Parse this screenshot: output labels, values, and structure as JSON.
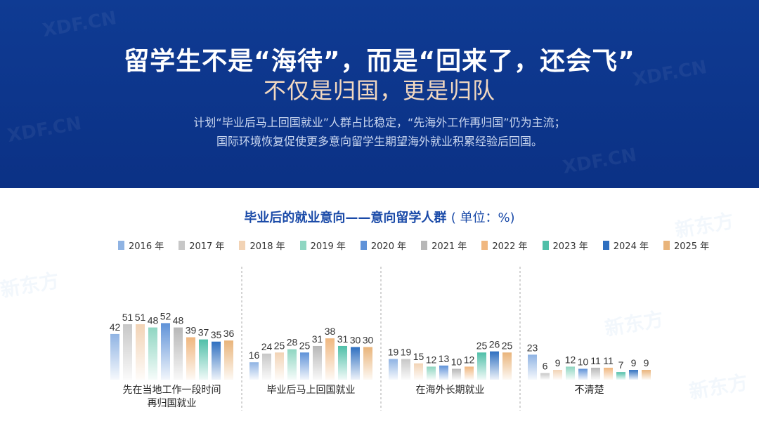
{
  "header": {
    "headline": "留学生不是“海待”，而是“回来了，还会飞”",
    "subhead": "不仅是归国，更是归队",
    "description_line1": "计划“毕业后马上回国就业”人群占比稳定，“先海外工作再归国”仍为主流；",
    "description_line2": "国际环境恢复促使更多意向留学生期望海外就业积累经验后回国。"
  },
  "chart_title": {
    "main": "毕业后的就业意向——意向留学人群",
    "unit": "( 单位：%)"
  },
  "colors": {
    "banner": "#0f3b93",
    "accent_title": "#1a4aa8"
  },
  "chart_data": {
    "type": "bar",
    "title": "毕业后的就业意向——意向留学人群 ( 单位：%)",
    "categories": [
      "先在当地工作一段时间再归国就业",
      "毕业后马上回国就业",
      "在海外长期就业",
      "不清楚"
    ],
    "category_labels": [
      [
        "先在当地工作一段时间",
        "再归国就业"
      ],
      [
        "毕业后马上回国就业"
      ],
      [
        "在海外长期就业"
      ],
      [
        "不清楚"
      ]
    ],
    "legend_position": "top",
    "grid": false,
    "ylim": [
      0,
      60
    ],
    "series": [
      {
        "name": "2016 年",
        "color": "#8fb3e3",
        "values": [
          42,
          16,
          19,
          23
        ]
      },
      {
        "name": "2017 年",
        "color": "#c7c7c7",
        "values": [
          51,
          24,
          19,
          6
        ]
      },
      {
        "name": "2018 年",
        "color": "#f2d3b5",
        "values": [
          51,
          25,
          15,
          9
        ]
      },
      {
        "name": "2019 年",
        "color": "#8fd6c2",
        "values": [
          48,
          28,
          12,
          12
        ]
      },
      {
        "name": "2020 年",
        "color": "#5f92d8",
        "values": [
          52,
          25,
          13,
          10
        ]
      },
      {
        "name": "2021 年",
        "color": "#b7b7b7",
        "values": [
          48,
          31,
          10,
          11
        ]
      },
      {
        "name": "2022 年",
        "color": "#f0b77f",
        "values": [
          39,
          38,
          12,
          11
        ]
      },
      {
        "name": "2023 年",
        "color": "#4fbfa8",
        "values": [
          37,
          31,
          25,
          7
        ]
      },
      {
        "name": "2024 年",
        "color": "#2e6fc0",
        "values": [
          35,
          30,
          26,
          9
        ]
      },
      {
        "name": "2025 年",
        "color": "#e9b47a",
        "values": [
          36,
          30,
          25,
          9
        ]
      }
    ]
  }
}
